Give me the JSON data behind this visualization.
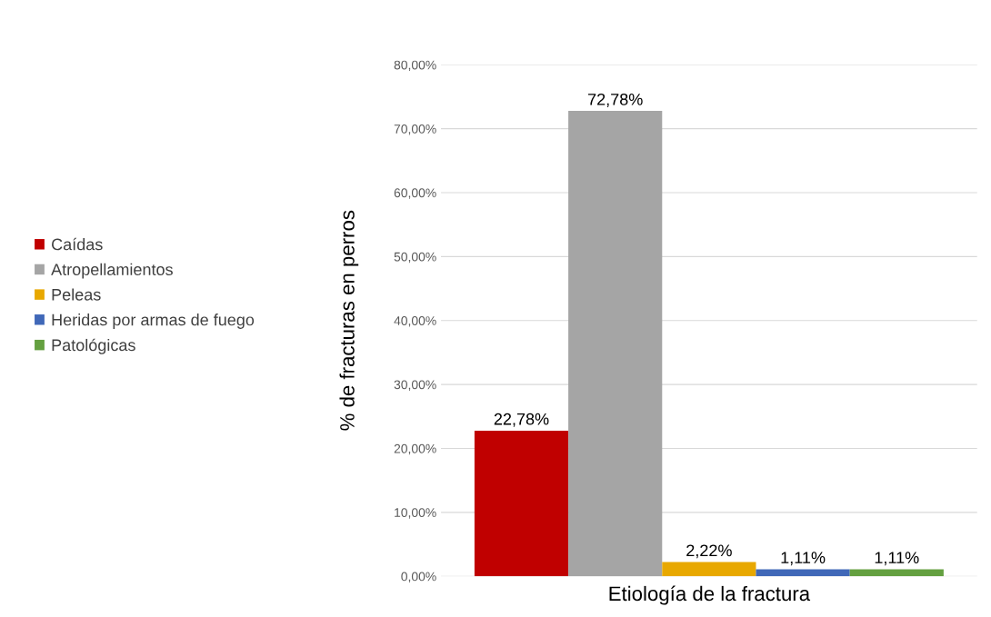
{
  "chart_data": {
    "type": "bar",
    "xlabel": "Etiología de la fractura",
    "ylabel": "% de fracturas en perros",
    "categories": [
      null
    ],
    "series": [
      {
        "name": "Caídas",
        "color": "#c00000",
        "values": [
          22.78
        ],
        "value_labels": [
          "22,78%"
        ]
      },
      {
        "name": "Atropellamientos",
        "color": "#a5a5a5",
        "values": [
          72.78
        ],
        "value_labels": [
          "72,78%"
        ]
      },
      {
        "name": "Peleas",
        "color": "#e8a800",
        "values": [
          2.22
        ],
        "value_labels": [
          "2,22%"
        ]
      },
      {
        "name": "Heridas por armas de fuego",
        "color": "#4068b8",
        "values": [
          1.11
        ],
        "value_labels": [
          "1,11%"
        ]
      },
      {
        "name": "Patológicas",
        "color": "#64a040",
        "values": [
          1.11
        ],
        "value_labels": [
          "1,11%"
        ]
      }
    ],
    "ylim": [
      0,
      80
    ],
    "yticks": [
      {
        "value": 0,
        "label": "0,00%"
      },
      {
        "value": 10,
        "label": "10,00%"
      },
      {
        "value": 20,
        "label": "20,00%"
      },
      {
        "value": 30,
        "label": "30,00%"
      },
      {
        "value": 40,
        "label": "40,00%"
      },
      {
        "value": 50,
        "label": "50,00%"
      },
      {
        "value": 60,
        "label": "60,00%"
      },
      {
        "value": 70,
        "label": "70,00%"
      },
      {
        "value": 80,
        "label": "80,00%"
      }
    ],
    "grid": "y",
    "legend": "left"
  }
}
